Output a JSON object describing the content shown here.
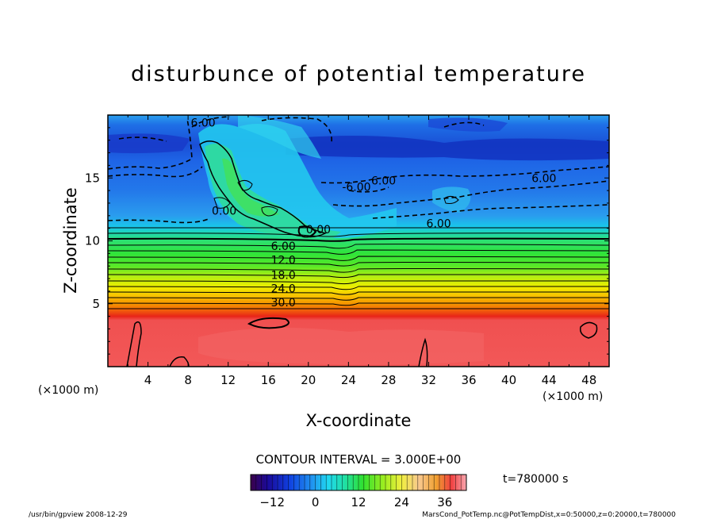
{
  "chart_data": {
    "type": "heatmap",
    "title": "disturbunce of potential temperature",
    "xlabel": "X-coordinate",
    "ylabel": "Z-coordinate",
    "x_unit_left": "(×1000 m)",
    "x_unit_right": "(×1000 m)",
    "xlim": [
      0,
      50
    ],
    "ylim": [
      0,
      20
    ],
    "x_ticks": [
      4,
      8,
      12,
      16,
      20,
      24,
      28,
      32,
      36,
      40,
      44,
      48
    ],
    "y_ticks": [
      5,
      10,
      15
    ],
    "contour_interval_text": "CONTOUR INTERVAL = 3.000E+00",
    "contour_labels": [
      {
        "text": "6.00",
        "x": 9.5,
        "z": 19.4
      },
      {
        "text": "6.00",
        "x": 27.5,
        "z": 14.8
      },
      {
        "text": "-6.00",
        "x": 24.8,
        "z": 14.3
      },
      {
        "text": "6.00",
        "x": 43.5,
        "z": 15.0
      },
      {
        "text": "6.00",
        "x": 33.0,
        "z": 11.4
      },
      {
        "text": "0.00",
        "x": 21.0,
        "z": 10.9
      },
      {
        "text": "0.00",
        "x": 11.6,
        "z": 12.4
      },
      {
        "text": "6.00",
        "x": 17.5,
        "z": 9.6
      },
      {
        "text": "12.0",
        "x": 17.5,
        "z": 8.5
      },
      {
        "text": "18.0",
        "x": 17.5,
        "z": 7.3
      },
      {
        "text": "24.0",
        "x": 17.5,
        "z": 6.2
      },
      {
        "text": "30.0",
        "x": 17.5,
        "z": 5.1
      }
    ],
    "colorbar": {
      "ticks": [
        -12,
        0,
        12,
        24,
        36
      ],
      "range": [
        -18,
        42
      ]
    },
    "time_label": "t=780000 s"
  },
  "footer_left": "/usr/bin/gpview   2008-12-29",
  "footer_right": "MarsCond_PotTemp.nc@PotTempDist,x=0:50000,z=0:20000,t=780000",
  "colors": {
    "cold_deep": "#0a1aa0",
    "blue": "#1e64e6",
    "cyan": "#14d2ee",
    "green": "#2ee63c",
    "yellow": "#f0f000",
    "orange": "#f08c00",
    "red": "#e62020"
  }
}
